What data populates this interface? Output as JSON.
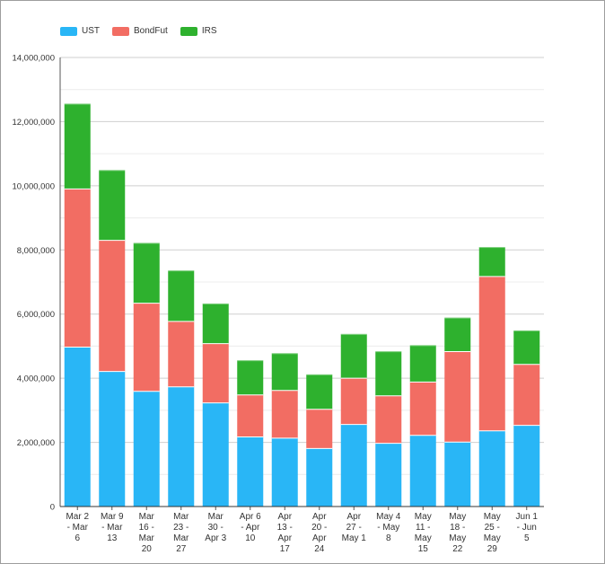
{
  "chart_data": {
    "type": "bar",
    "stacked": true,
    "title": "",
    "xlabel": "",
    "ylabel": "",
    "ylim": [
      0,
      14000000
    ],
    "yticks": [
      0,
      2000000,
      4000000,
      6000000,
      8000000,
      10000000,
      12000000,
      14000000
    ],
    "ytick_labels": [
      "0",
      "2,000,000",
      "4,000,000",
      "6,000,000",
      "8,000,000",
      "10,000,000",
      "12,000,000",
      "14,000,000"
    ],
    "grid": true,
    "legend_position": "top-left",
    "categories": [
      [
        "Mar 2",
        "- Mar",
        "6"
      ],
      [
        "Mar 9",
        "- Mar",
        "13"
      ],
      [
        "Mar",
        "16 -",
        "Mar",
        "20"
      ],
      [
        "Mar",
        "23 -",
        "Mar",
        "27"
      ],
      [
        "Mar",
        "30 -",
        "Apr 3"
      ],
      [
        "Apr 6",
        "- Apr",
        "10"
      ],
      [
        "Apr",
        "13 -",
        "Apr",
        "17"
      ],
      [
        "Apr",
        "20 -",
        "Apr",
        "24"
      ],
      [
        "Apr",
        "27 -",
        "May 1"
      ],
      [
        "May 4",
        "- May",
        "8"
      ],
      [
        "May",
        "11 -",
        "May",
        "15"
      ],
      [
        "May",
        "18 -",
        "May",
        "22"
      ],
      [
        "May",
        "25 -",
        "May",
        "29"
      ],
      [
        "Jun 1",
        "- Jun",
        "5"
      ]
    ],
    "series": [
      {
        "name": "UST",
        "color": "#29b6f6",
        "values": [
          4970000,
          4210000,
          3590000,
          3730000,
          3230000,
          2170000,
          2130000,
          1810000,
          2560000,
          1970000,
          2220000,
          2010000,
          2360000,
          2530000
        ]
      },
      {
        "name": "BondFut",
        "color": "#f26d63",
        "values": [
          4930000,
          4090000,
          2750000,
          2040000,
          1850000,
          1310000,
          1490000,
          1220000,
          1440000,
          1480000,
          1660000,
          2820000,
          4810000,
          1900000
        ]
      },
      {
        "name": "IRS",
        "color": "#2eb12e",
        "values": [
          2660000,
          2190000,
          1880000,
          1590000,
          1250000,
          1080000,
          1160000,
          1090000,
          1380000,
          1390000,
          1150000,
          1060000,
          920000,
          1060000
        ]
      }
    ]
  }
}
